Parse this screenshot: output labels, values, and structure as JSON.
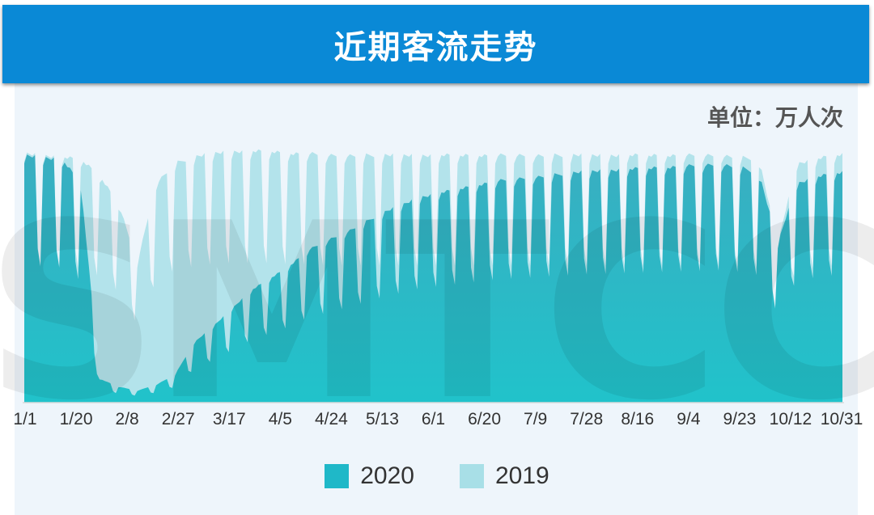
{
  "header": {
    "title": "近期客流走势"
  },
  "unit_label": "单位：万人次",
  "watermark": "SMTCC",
  "colors": {
    "header_bg": "#0a89d6",
    "series_2020": "#1fb8c8",
    "series_2019": "#a8dfe7",
    "panel_bg": "#eef5fb"
  },
  "chart_data": {
    "type": "area",
    "title": "近期客流走势",
    "ylabel": "单位：万人次",
    "xlabel": "",
    "ylim": [
      0,
      1400
    ],
    "grid": false,
    "legend_position": "bottom-center",
    "x_tick_labels": [
      "1/1",
      "1/20",
      "2/8",
      "2/27",
      "3/17",
      "4/5",
      "4/24",
      "5/13",
      "6/1",
      "6/20",
      "7/9",
      "7/28",
      "8/16",
      "9/4",
      "9/23",
      "10/12",
      "10/31"
    ],
    "start_date": "1/1",
    "end_date": "10/31",
    "series": [
      {
        "name": "2020",
        "color": "#1fb8c8",
        "weekly_peaks": [
          1240,
          1230,
          1220,
          1100,
          120,
          80,
          60,
          90,
          140,
          300,
          380,
          470,
          560,
          620,
          680,
          760,
          810,
          850,
          900,
          950,
          990,
          1030,
          1050,
          1070,
          1090,
          1110,
          1120,
          1130,
          1140,
          1150,
          1160,
          1165,
          1170,
          1175,
          1180,
          1185,
          1190,
          1195,
          1180,
          1150,
          800,
          1100,
          1130,
          1150,
          1160
        ]
      },
      {
        "name": "2019",
        "color": "#a8dfe7",
        "weekly_peaks": [
          1250,
          1240,
          1230,
          1220,
          1140,
          1000,
          700,
          1100,
          1200,
          1230,
          1250,
          1260,
          1260,
          1260,
          1250,
          1250,
          1240,
          1240,
          1240,
          1240,
          1240,
          1240,
          1240,
          1240,
          1240,
          1240,
          1240,
          1240,
          1240,
          1240,
          1240,
          1240,
          1240,
          1240,
          1240,
          1240,
          1240,
          1240,
          1230,
          1220,
          800,
          1200,
          1220,
          1240,
          1250
        ]
      }
    ]
  },
  "legend": {
    "items": [
      {
        "label": "2020",
        "color": "#1fb8c8"
      },
      {
        "label": "2019",
        "color": "#a8dfe7"
      }
    ]
  }
}
